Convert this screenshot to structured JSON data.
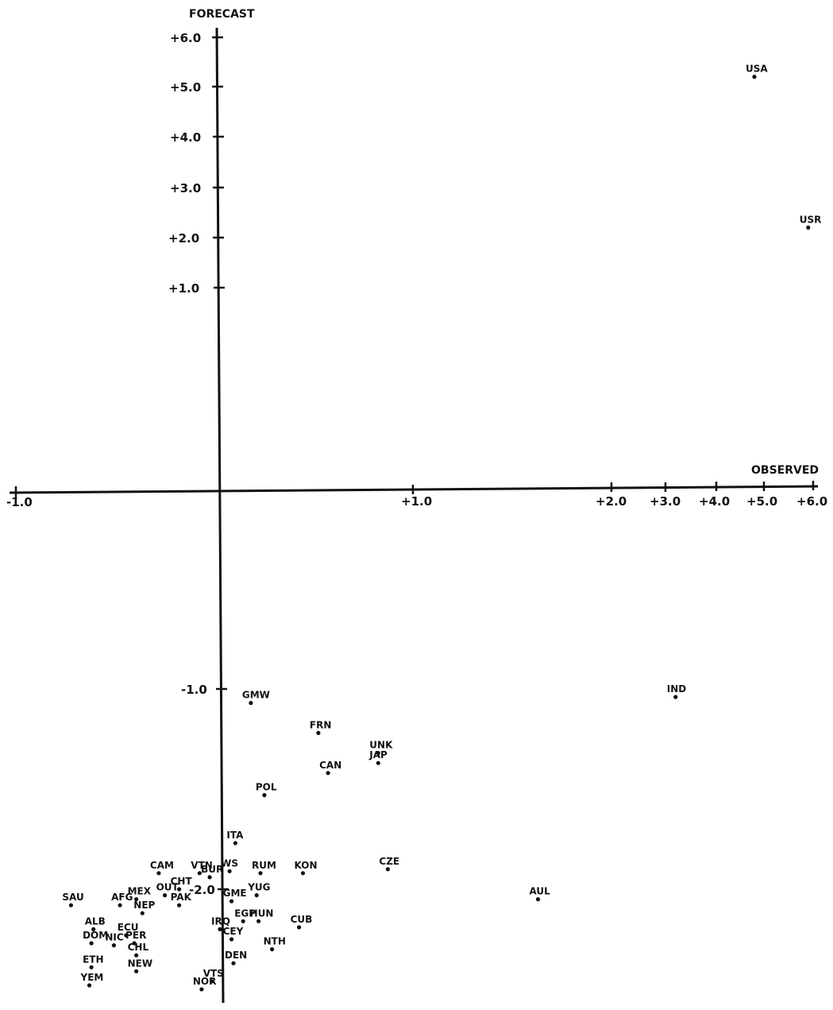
{
  "chart_data": {
    "type": "scatter",
    "xlabel": "OBSERVED",
    "ylabel": "FORECAST",
    "x_scale": "mixed: linear from -1.0 to +1.0, compressed from +2.0 to +6.0",
    "y_scale": "linear above 0 (+1.0 to +6.0), expanded below 0 (-1.0, -2.0)",
    "grid": false,
    "x_ticks": [
      "-1.0",
      "+1.0",
      "+2.0",
      "+3.0",
      "+4.0",
      "+5.0",
      "+6.0"
    ],
    "y_ticks": [
      "+6.0",
      "+5.0",
      "+4.0",
      "+3.0",
      "+2.0",
      "+1.0",
      "-1.0",
      "-2.0"
    ],
    "points": [
      {
        "label": "USA",
        "x": 4.8,
        "y": 5.2
      },
      {
        "label": "USR",
        "x": 5.9,
        "y": 2.2
      },
      {
        "label": "IND",
        "x": 3.2,
        "y": -1.04
      },
      {
        "label": "GMW",
        "x": 0.16,
        "y": -1.07
      },
      {
        "label": "FRN",
        "x": 0.51,
        "y": -1.22
      },
      {
        "label": "UNK",
        "x": 0.82,
        "y": -1.32
      },
      {
        "label": "JAP",
        "x": 0.82,
        "y": -1.37
      },
      {
        "label": "CAN",
        "x": 0.56,
        "y": -1.42
      },
      {
        "label": "POL",
        "x": 0.23,
        "y": -1.53
      },
      {
        "label": "ITA",
        "x": 0.08,
        "y": -1.77
      },
      {
        "label": "CZE",
        "x": 0.87,
        "y": -1.9
      },
      {
        "label": "AUL",
        "x": 1.63,
        "y": -2.05
      },
      {
        "label": "KON",
        "x": 0.43,
        "y": -1.92
      },
      {
        "label": "RUM",
        "x": 0.21,
        "y": -1.92
      },
      {
        "label": "WS",
        "x": 0.05,
        "y": -1.91
      },
      {
        "label": "YUG",
        "x": 0.19,
        "y": -2.03
      },
      {
        "label": "GME",
        "x": 0.06,
        "y": -2.06
      },
      {
        "label": "HUN",
        "x": 0.2,
        "y": -2.16
      },
      {
        "label": "EGP",
        "x": 0.12,
        "y": -2.16
      },
      {
        "label": "CUB",
        "x": 0.41,
        "y": -2.19
      },
      {
        "label": "CEY",
        "x": 0.06,
        "y": -2.25
      },
      {
        "label": "NTH",
        "x": 0.27,
        "y": -2.3
      },
      {
        "label": "DEN",
        "x": 0.07,
        "y": -2.37
      },
      {
        "label": "IRQ",
        "x": 0.0,
        "y": -2.2
      },
      {
        "label": "VTS",
        "x": -0.04,
        "y": -2.46
      },
      {
        "label": "NOR",
        "x": -0.09,
        "y": -2.5
      },
      {
        "label": "BUR",
        "x": -0.05,
        "y": -1.94
      },
      {
        "label": "VTN",
        "x": -0.1,
        "y": -1.92
      },
      {
        "label": "CAM",
        "x": -0.3,
        "y": -1.92
      },
      {
        "label": "CHT",
        "x": -0.2,
        "y": -2.0
      },
      {
        "label": "OUT",
        "x": -0.27,
        "y": -2.03
      },
      {
        "label": "MEX",
        "x": -0.41,
        "y": -2.05
      },
      {
        "label": "PAK",
        "x": -0.2,
        "y": -2.08
      },
      {
        "label": "NEP",
        "x": -0.38,
        "y": -2.12
      },
      {
        "label": "AFG",
        "x": -0.49,
        "y": -2.08
      },
      {
        "label": "SAU",
        "x": -0.73,
        "y": -2.08
      },
      {
        "label": "ALB",
        "x": -0.62,
        "y": -2.2
      },
      {
        "label": "ECU",
        "x": -0.46,
        "y": -2.23
      },
      {
        "label": "PER",
        "x": -0.42,
        "y": -2.27
      },
      {
        "label": "DOM",
        "x": -0.63,
        "y": -2.27
      },
      {
        "label": "NIC",
        "x": -0.52,
        "y": -2.28
      },
      {
        "label": "CHL",
        "x": -0.41,
        "y": -2.33
      },
      {
        "label": "NEW",
        "x": -0.41,
        "y": -2.41
      },
      {
        "label": "ETH",
        "x": -0.63,
        "y": -2.39
      },
      {
        "label": "YEM",
        "x": -0.64,
        "y": -2.48
      }
    ]
  }
}
